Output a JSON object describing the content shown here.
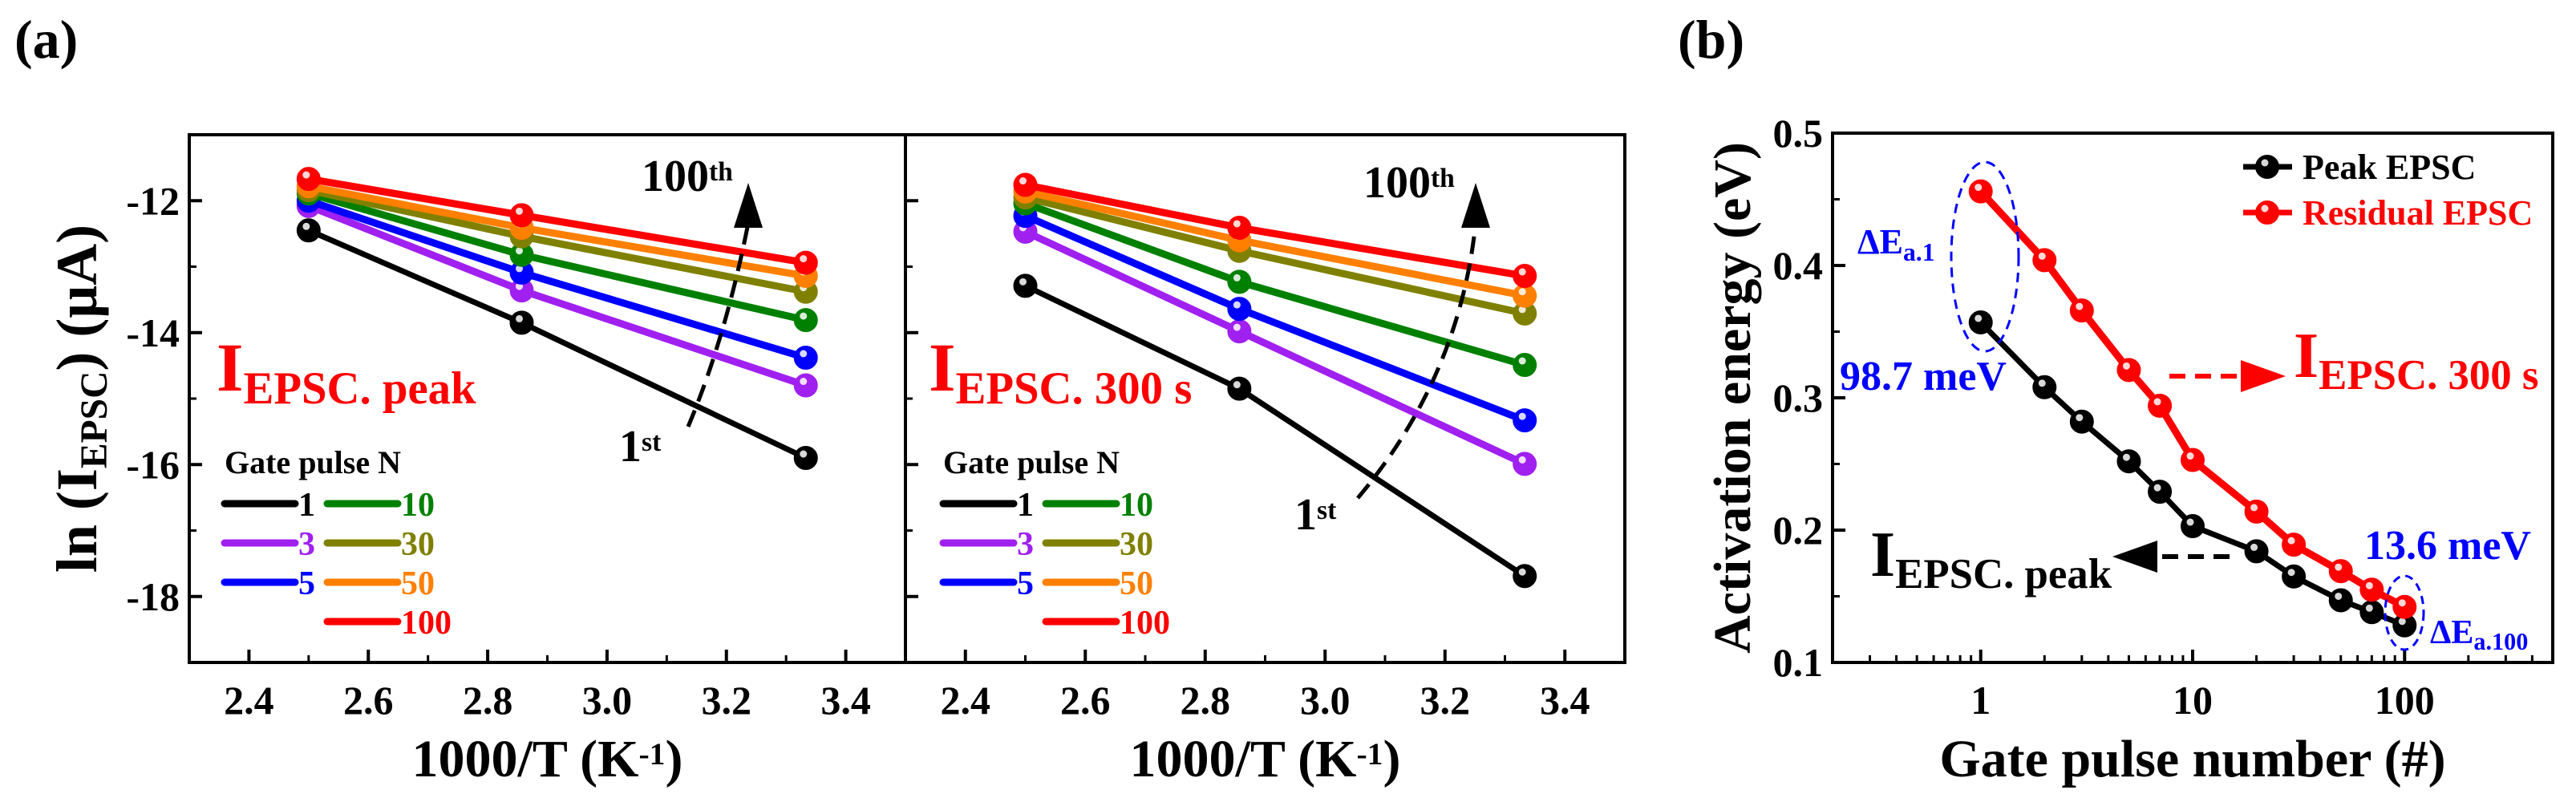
{
  "figure": {
    "panel_a_label": "(a)",
    "panel_b_label": "(b)"
  },
  "chart_data": [
    {
      "id": "a-left",
      "type": "line",
      "title": "",
      "xlabel": {
        "text": "1000/T (K",
        "sup": "-1",
        "tail": ")"
      },
      "ylabel": {
        "text": "ln (I",
        "sub": "EPSC",
        "tail": ") (μA)"
      },
      "xlim": [
        2.3,
        3.5
      ],
      "ylim": [
        -19,
        -11
      ],
      "xticks": [
        2.4,
        2.6,
        2.8,
        3.0,
        3.2,
        3.4
      ],
      "xtick_labels": [
        "2.4",
        "2.6",
        "2.8",
        "3.0",
        "3.2",
        "3.4"
      ],
      "yticks": [
        -12,
        -14,
        -16,
        -18
      ],
      "ytick_labels": [
        "-12",
        "-14",
        "-16",
        "-18"
      ],
      "x": [
        2.5,
        2.857,
        3.333
      ],
      "series": [
        {
          "name": "1",
          "color": "#000000",
          "values": [
            -12.45,
            -13.85,
            -15.9
          ]
        },
        {
          "name": "3",
          "color": "#a020f0",
          "values": [
            -12.08,
            -13.36,
            -14.8
          ]
        },
        {
          "name": "5",
          "color": "#0000ff",
          "values": [
            -12.0,
            -13.09,
            -14.38
          ]
        },
        {
          "name": "10",
          "color": "#008000",
          "values": [
            -11.89,
            -12.82,
            -13.81
          ]
        },
        {
          "name": "30",
          "color": "#808000",
          "values": [
            -11.84,
            -12.54,
            -13.38
          ]
        },
        {
          "name": "50",
          "color": "#ff8000",
          "values": [
            -11.78,
            -12.41,
            -13.14
          ]
        },
        {
          "name": "100",
          "color": "#ff0000",
          "values": [
            -11.67,
            -12.22,
            -12.94
          ]
        }
      ],
      "annotation": {
        "main": "I",
        "sub": "EPSC. peak",
        "color": "#ff0000"
      },
      "legend_title": "Gate pulse N",
      "arrow_labels": {
        "top": "100",
        "top_sup": "th",
        "bottom": "1",
        "bottom_sup": "st"
      }
    },
    {
      "id": "a-right",
      "type": "line",
      "title": "",
      "xlabel": {
        "text": "1000/T (K",
        "sup": "-1",
        "tail": ")"
      },
      "xlim": [
        2.3,
        3.5
      ],
      "ylim": [
        -19,
        -11
      ],
      "xticks": [
        2.4,
        2.6,
        2.8,
        3.0,
        3.2,
        3.4
      ],
      "xtick_labels": [
        "2.4",
        "2.6",
        "2.8",
        "3.0",
        "3.2",
        "3.4"
      ],
      "yticks": [
        -12,
        -14,
        -16,
        -18
      ],
      "x": [
        2.5,
        2.857,
        3.333
      ],
      "series": [
        {
          "name": "1",
          "color": "#000000",
          "values": [
            -13.29,
            -14.85,
            -17.69
          ]
        },
        {
          "name": "3",
          "color": "#a020f0",
          "values": [
            -12.47,
            -13.98,
            -15.99
          ]
        },
        {
          "name": "5",
          "color": "#0000ff",
          "values": [
            -12.23,
            -13.64,
            -15.33
          ]
        },
        {
          "name": "10",
          "color": "#008000",
          "values": [
            -12.04,
            -13.23,
            -14.49
          ]
        },
        {
          "name": "30",
          "color": "#808000",
          "values": [
            -11.95,
            -12.76,
            -13.71
          ]
        },
        {
          "name": "50",
          "color": "#ff8000",
          "values": [
            -11.86,
            -12.6,
            -13.44
          ]
        },
        {
          "name": "100",
          "color": "#ff0000",
          "values": [
            -11.76,
            -12.41,
            -13.14
          ]
        }
      ],
      "annotation": {
        "main": "I",
        "sub": "EPSC. 300 s",
        "color": "#ff0000"
      },
      "legend_title": "Gate pulse N",
      "arrow_labels": {
        "top": "100",
        "top_sup": "th",
        "bottom": "1",
        "bottom_sup": "st"
      }
    },
    {
      "id": "b",
      "type": "line",
      "title": "",
      "xscale": "log",
      "xlabel": {
        "text": "Gate pulse number (#)"
      },
      "ylabel": {
        "text": "Activation energy (eV)"
      },
      "xlim": [
        0.2,
        500
      ],
      "ylim": [
        0.1,
        0.5
      ],
      "xticks": [
        1,
        10,
        100
      ],
      "xtick_labels": [
        "1",
        "10",
        "100"
      ],
      "yticks": [
        0.1,
        0.2,
        0.3,
        0.4,
        0.5
      ],
      "ytick_labels": [
        "0.1",
        "0.2",
        "0.3",
        "0.4",
        "0.5"
      ],
      "x": [
        1,
        2,
        3,
        5,
        7,
        10,
        20,
        30,
        50,
        70,
        100
      ],
      "series": [
        {
          "name": "Peak EPSC",
          "color": "#000000",
          "values": [
            0.357,
            0.308,
            0.282,
            0.252,
            0.229,
            0.203,
            0.184,
            0.165,
            0.147,
            0.138,
            0.128
          ]
        },
        {
          "name": "Residual EPSC",
          "color": "#ff0000",
          "values": [
            0.456,
            0.404,
            0.366,
            0.321,
            0.294,
            0.253,
            0.214,
            0.189,
            0.169,
            0.155,
            0.142
          ]
        }
      ],
      "legend_position": "top-right",
      "annotations": {
        "delta_1": {
          "main": "ΔE",
          "sub": "a.1"
        },
        "value_1": "98.7 meV",
        "delta_100": {
          "main": "ΔE",
          "sub": "a.100"
        },
        "value_100": "13.6 meV",
        "residual_label": {
          "main": "I",
          "sub": "EPSC. 300 s"
        },
        "peak_label": {
          "main": "I",
          "sub": "EPSC. peak"
        },
        "annotation_color": "#0000ff"
      }
    }
  ]
}
